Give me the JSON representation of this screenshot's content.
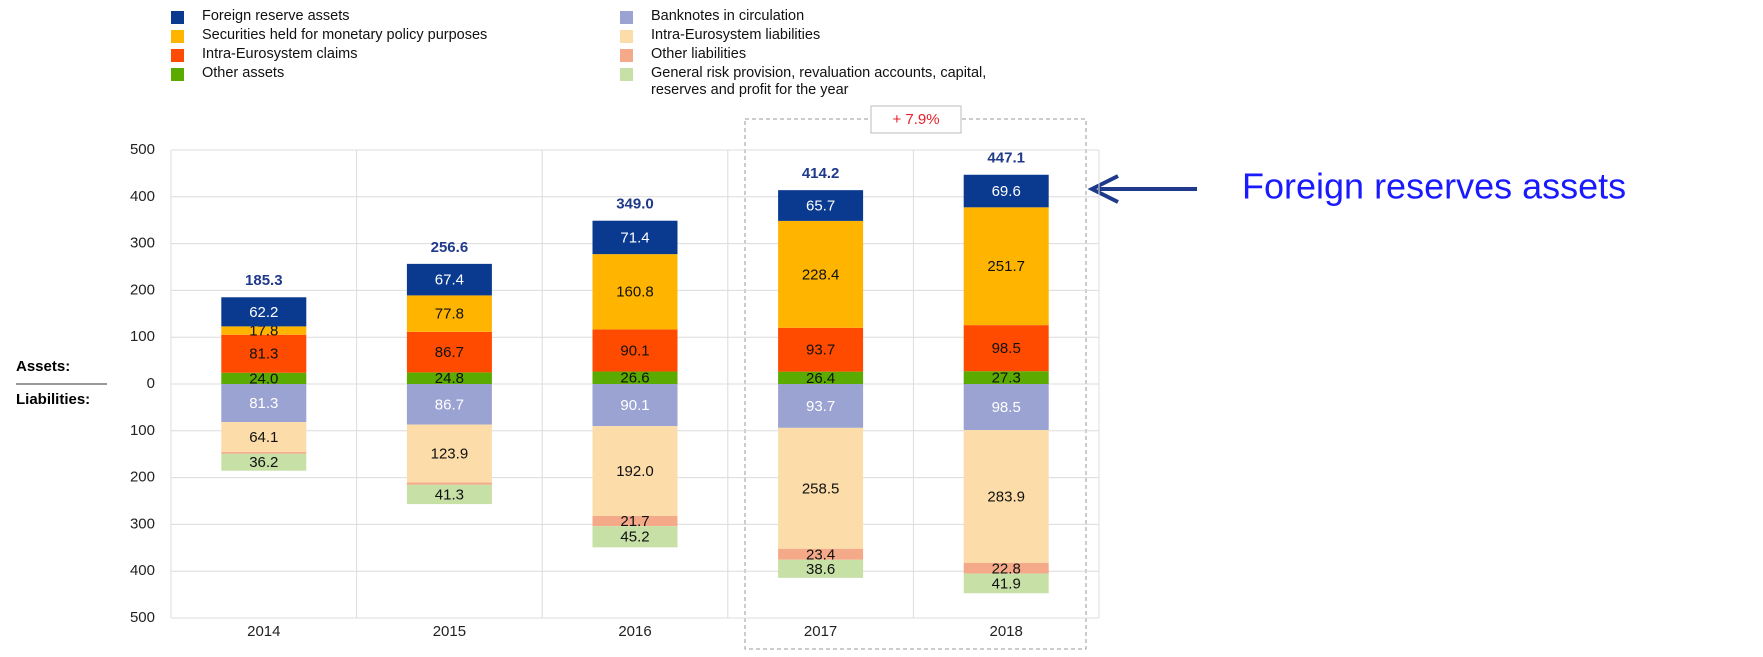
{
  "chart_data": {
    "type": "bar",
    "stacked": true,
    "categories": [
      "2014",
      "2015",
      "2016",
      "2017",
      "2018"
    ],
    "series": [
      {
        "name": "Other assets",
        "color": "#5aaa00",
        "label_color": "#111111",
        "values": [
          24.0,
          24.8,
          26.6,
          26.4,
          27.3
        ],
        "value_labels": [
          "24.0",
          "24.8",
          "26.6",
          "26.4",
          "27.3"
        ]
      },
      {
        "name": "Intra-Eurosystem claims",
        "color": "#ff4b00",
        "label_color": "#111111",
        "values": [
          81.3,
          86.7,
          90.1,
          93.7,
          98.5
        ],
        "value_labels": [
          "81.3",
          "86.7",
          "90.1",
          "93.7",
          "98.5"
        ]
      },
      {
        "name": "Securities held for monetary policy purposes",
        "color": "#ffb400",
        "label_color": "#111111",
        "values": [
          17.8,
          77.8,
          160.8,
          228.4,
          251.7
        ],
        "value_labels": [
          "17.8",
          "77.8",
          "160.8",
          "228.4",
          "251.7"
        ]
      },
      {
        "name": "Foreign reserve assets",
        "color": "#0a3a8f",
        "label_color": "#ffffff",
        "values": [
          62.2,
          67.4,
          71.4,
          65.7,
          69.6
        ],
        "value_labels": [
          "62.2",
          "67.4",
          "71.4",
          "65.7",
          "69.6"
        ]
      },
      {
        "name": "Banknotes in circulation",
        "color": "#9aa3d2",
        "label_color": "#ffffff",
        "values": [
          -81.3,
          -86.7,
          -90.1,
          -93.7,
          -98.5
        ],
        "value_labels": [
          "81.3",
          "86.7",
          "90.1",
          "93.7",
          "98.5"
        ]
      },
      {
        "name": "Intra-Eurosystem liabilities",
        "color": "#fcdca8",
        "label_color": "#111111",
        "values": [
          -64.1,
          -123.9,
          -192.0,
          -258.5,
          -283.9
        ],
        "value_labels": [
          "64.1",
          "123.9",
          "192.0",
          "258.5",
          "283.9"
        ]
      },
      {
        "name": "Other liabilities",
        "color": "#f4a988",
        "label_color": "#111111",
        "values": [
          -3.7,
          -4.7,
          -21.7,
          -23.4,
          -22.8
        ],
        "value_labels": [
          null,
          null,
          "21.7",
          "23.4",
          "22.8"
        ]
      },
      {
        "name": "General risk provision, revaluation accounts, capital, reserves and profit for the year",
        "color": "#c6e0a6",
        "label_color": "#111111",
        "values": [
          -36.2,
          -41.3,
          -45.2,
          -38.6,
          -41.9
        ],
        "value_labels": [
          "36.2",
          "41.3",
          "45.2",
          "38.6",
          "41.9"
        ]
      }
    ],
    "legend_order": [
      3,
      2,
      1,
      0,
      4,
      5,
      6,
      7
    ],
    "totals": [
      185.3,
      256.6,
      349.0,
      414.2,
      447.1
    ],
    "total_labels": [
      "185.3",
      "256.6",
      "349.0",
      "414.2",
      "447.1"
    ],
    "ylim": [
      -500,
      500
    ],
    "yticks": [
      500,
      400,
      300,
      200,
      100,
      0,
      {
        "value": -100,
        "label": "100"
      },
      {
        "value": -200,
        "label": "200"
      },
      {
        "value": -300,
        "label": "300"
      },
      {
        "value": -400,
        "label": "400"
      },
      {
        "value": -500,
        "label": "500"
      }
    ],
    "grid": true,
    "side_labels": [
      "Assets:",
      "Liabilities:"
    ],
    "growth_annotation": "+ 7.9%",
    "callout": "Foreign reserves assets"
  }
}
